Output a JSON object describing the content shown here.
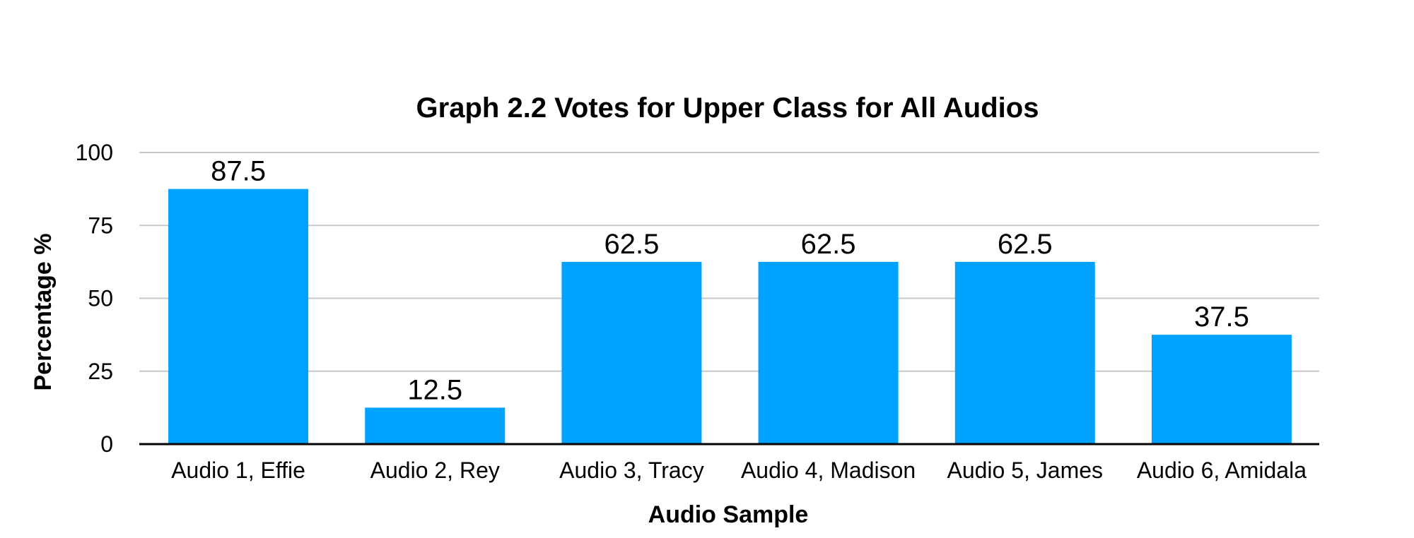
{
  "chart_data": {
    "type": "bar",
    "title": "Graph 2.2 Votes for Upper Class for All Audios",
    "xlabel": "Audio Sample",
    "ylabel": "Percentage %",
    "categories": [
      "Audio 1, Effie",
      "Audio 2, Rey",
      "Audio 3, Tracy",
      "Audio 4, Madison",
      "Audio 5, James",
      "Audio 6, Amidala"
    ],
    "values": [
      87.5,
      12.5,
      62.5,
      62.5,
      62.5,
      37.5
    ],
    "data_labels": [
      "87.5",
      "12.5",
      "62.5",
      "62.5",
      "62.5",
      "37.5"
    ],
    "ylim": [
      0,
      100
    ],
    "yticks": [
      0,
      25,
      50,
      75,
      100
    ],
    "ytick_labels": [
      "0",
      "25",
      "50",
      "75",
      "100"
    ],
    "grid": true,
    "legend": "none",
    "colors": {
      "bar": "#00A2FF",
      "grid": "#C8C8C8",
      "axis": "#000000",
      "text": "#000000"
    }
  }
}
